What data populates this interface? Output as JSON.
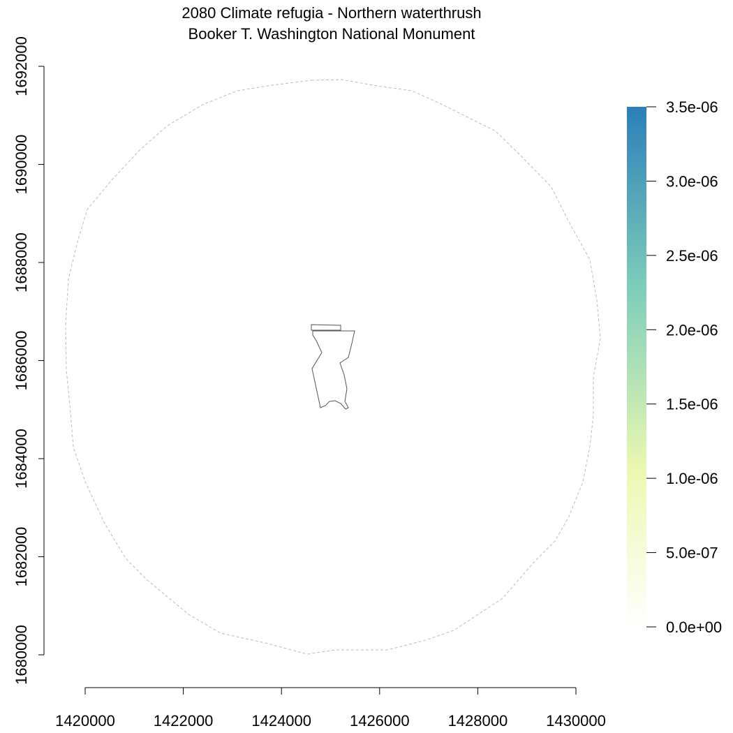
{
  "map": {
    "title_line1": "2080 Climate refugia - Northern waterthrush",
    "title_line2": "Booker T. Washington National Monument",
    "x_ticks": [
      "1420000",
      "1422000",
      "1424000",
      "1426000",
      "1428000",
      "1430000"
    ],
    "y_ticks": [
      "1680000",
      "1682000",
      "1684000",
      "1686000",
      "1688000",
      "1690000",
      "1692000"
    ],
    "legend": {
      "labels": [
        "0.0e+00",
        "5.0e-07",
        "1.0e-06",
        "1.5e-06",
        "2.0e-06",
        "2.5e-06",
        "3.0e-06",
        "3.5e-06"
      ],
      "color_low": "#ffffff",
      "color_mid_low": "#edf8b1",
      "color_mid": "#7fcdbb",
      "color_high": "#2c7fb8"
    },
    "buffer_color": "#bbbbbb",
    "boundary_color": "#555555"
  }
}
